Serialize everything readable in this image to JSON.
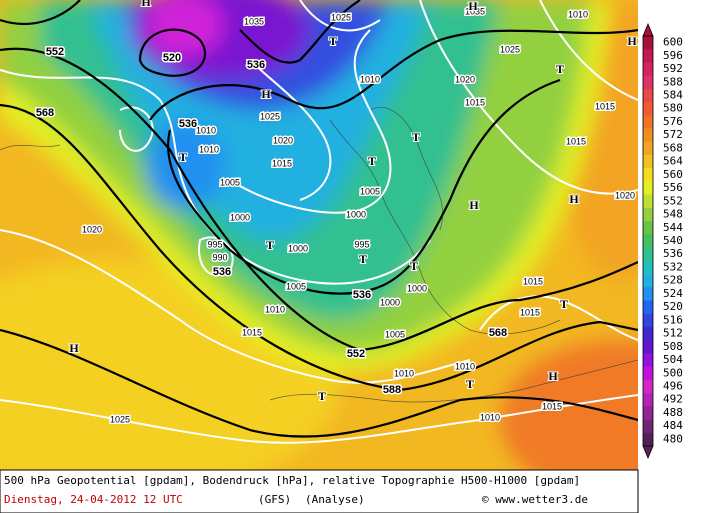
{
  "legend": {
    "values": [
      600,
      596,
      592,
      588,
      584,
      580,
      576,
      572,
      568,
      564,
      560,
      556,
      552,
      548,
      544,
      540,
      536,
      532,
      528,
      524,
      520,
      516,
      512,
      508,
      504,
      500,
      496,
      492,
      488,
      484,
      480
    ],
    "colors": [
      "#a8103c",
      "#c41852",
      "#d42462",
      "#e03466",
      "#e84848",
      "#f05a30",
      "#f07226",
      "#f08e22",
      "#f2a422",
      "#f2c020",
      "#f4e020",
      "#e4f024",
      "#bce034",
      "#92d040",
      "#66c444",
      "#44c060",
      "#30c08e",
      "#22c0bc",
      "#22b0e0",
      "#2290f0",
      "#2266f0",
      "#3044e0",
      "#4226d0",
      "#6414d0",
      "#9210e0",
      "#c210e0",
      "#d424c4",
      "#b424b4",
      "#922496",
      "#742474",
      "#582058"
    ]
  },
  "contour_labels": [
    552,
    568,
    520,
    536,
    536,
    536,
    536,
    552,
    568,
    588
  ],
  "pressure_labels": [
    1035,
    1025,
    1035,
    1010,
    1025,
    1020,
    1010,
    1025,
    1020,
    1010,
    1010,
    1015,
    1015,
    1015,
    1015,
    1020,
    1005,
    1005,
    1000,
    1000,
    995,
    990,
    1000,
    995,
    1005,
    1010,
    1015,
    1000,
    1000,
    1005,
    1015,
    1015,
    1010,
    1010,
    1010,
    1015,
    1020,
    1025
  ],
  "markers": [
    "H",
    "H",
    "T",
    "T",
    "H",
    "H",
    "T",
    "T",
    "T",
    "T",
    "T",
    "T",
    "H",
    "H",
    "T",
    "T",
    "H",
    "H",
    "T"
  ],
  "footer": {
    "line1": "500 hPa Geopotential [gpdam], Bodendruck [hPa], relative Topographie H500-H1000 [gpdam]",
    "date": "Dienstag, 24-04-2012  12 UTC",
    "model": "(GFS)",
    "analysis": "(Analyse)",
    "credit": "© www.wetter3.de"
  }
}
